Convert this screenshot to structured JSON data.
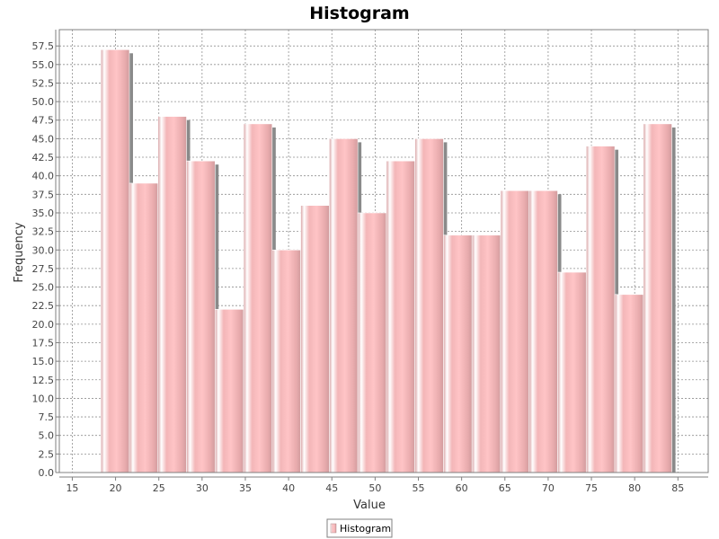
{
  "chart_data": {
    "type": "bar",
    "title": "Histogram",
    "xlabel": "Value",
    "ylabel": "Frequency",
    "xlim": [
      13.5,
      88.5
    ],
    "ylim": [
      0,
      59.7
    ],
    "x_ticks": [
      15,
      20,
      25,
      30,
      35,
      40,
      45,
      50,
      55,
      60,
      65,
      70,
      75,
      80,
      85
    ],
    "y_ticks": [
      0.0,
      2.5,
      5.0,
      7.5,
      10.0,
      12.5,
      15.0,
      17.5,
      20.0,
      22.5,
      25.0,
      27.5,
      30.0,
      32.5,
      35.0,
      37.5,
      40.0,
      42.5,
      45.0,
      47.5,
      50.0,
      52.5,
      55.0,
      57.5
    ],
    "grid": true,
    "legend": "bottom-center",
    "series": [
      {
        "name": "Histogram",
        "bins": [
          {
            "start": 18.3,
            "end": 21.6,
            "value": 57
          },
          {
            "start": 21.6,
            "end": 24.9,
            "value": 39
          },
          {
            "start": 24.9,
            "end": 28.2,
            "value": 48
          },
          {
            "start": 28.2,
            "end": 31.5,
            "value": 42
          },
          {
            "start": 31.5,
            "end": 34.8,
            "value": 22
          },
          {
            "start": 34.8,
            "end": 38.1,
            "value": 47
          },
          {
            "start": 38.1,
            "end": 41.4,
            "value": 30
          },
          {
            "start": 41.4,
            "end": 44.7,
            "value": 36
          },
          {
            "start": 44.7,
            "end": 48.0,
            "value": 45
          },
          {
            "start": 48.0,
            "end": 51.3,
            "value": 35
          },
          {
            "start": 51.3,
            "end": 54.6,
            "value": 42
          },
          {
            "start": 54.6,
            "end": 57.9,
            "value": 45
          },
          {
            "start": 57.9,
            "end": 61.2,
            "value": 32
          },
          {
            "start": 61.2,
            "end": 64.5,
            "value": 32
          },
          {
            "start": 64.5,
            "end": 67.8,
            "value": 38
          },
          {
            "start": 67.8,
            "end": 71.1,
            "value": 38
          },
          {
            "start": 71.1,
            "end": 74.4,
            "value": 27
          },
          {
            "start": 74.4,
            "end": 77.7,
            "value": 44
          },
          {
            "start": 77.7,
            "end": 81.0,
            "value": 24
          },
          {
            "start": 81.0,
            "end": 84.3,
            "value": 47
          }
        ]
      }
    ]
  },
  "colors": {
    "bar_edge": "#d9a3a5",
    "bar_center": "#ffc4c6",
    "bar_shadow": "#8a8a8a",
    "grid": "#909090",
    "axis": "#7f7f7f",
    "plot_border": "#808080"
  }
}
